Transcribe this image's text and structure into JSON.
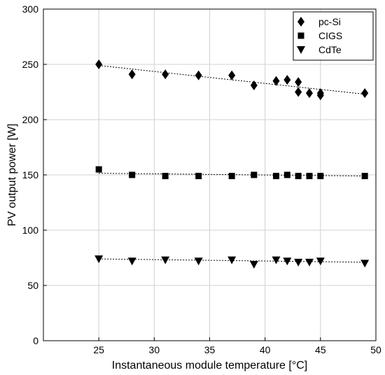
{
  "chart_data": {
    "type": "scatter",
    "xlabel": "Instantaneous module temperature [°C]",
    "ylabel": "PV output power [W]",
    "xlim": [
      20,
      50
    ],
    "ylim": [
      0,
      300
    ],
    "xticks": [
      25,
      30,
      35,
      40,
      45,
      50
    ],
    "yticks": [
      0,
      50,
      100,
      150,
      200,
      250,
      300
    ],
    "grid": true,
    "legend_position": "top-right",
    "series": [
      {
        "name": "pc-Si",
        "marker": "diamond",
        "color": "#000000",
        "points": [
          [
            25,
            250
          ],
          [
            28,
            241
          ],
          [
            31,
            241
          ],
          [
            34,
            240
          ],
          [
            37,
            240
          ],
          [
            39,
            231
          ],
          [
            41,
            235
          ],
          [
            42,
            236
          ],
          [
            43,
            234
          ],
          [
            43,
            225
          ],
          [
            44,
            224
          ],
          [
            45,
            224
          ],
          [
            45,
            222
          ],
          [
            49,
            224
          ]
        ],
        "trend": [
          [
            25,
            249
          ],
          [
            49,
            223
          ]
        ]
      },
      {
        "name": "CIGS",
        "marker": "square",
        "color": "#000000",
        "points": [
          [
            25,
            155
          ],
          [
            28,
            150
          ],
          [
            31,
            149
          ],
          [
            34,
            149
          ],
          [
            37,
            149
          ],
          [
            39,
            150
          ],
          [
            41,
            149
          ],
          [
            42,
            150
          ],
          [
            43,
            149
          ],
          [
            44,
            149
          ],
          [
            45,
            149
          ],
          [
            49,
            149
          ]
        ],
        "trend": [
          [
            25,
            151.5
          ],
          [
            49,
            149
          ]
        ]
      },
      {
        "name": "CdTe",
        "marker": "triangle-down",
        "color": "#000000",
        "points": [
          [
            25,
            74
          ],
          [
            28,
            72
          ],
          [
            31,
            73
          ],
          [
            34,
            72
          ],
          [
            37,
            73
          ],
          [
            39,
            69
          ],
          [
            41,
            73
          ],
          [
            42,
            72
          ],
          [
            43,
            71
          ],
          [
            44,
            71
          ],
          [
            45,
            72
          ],
          [
            49,
            70
          ]
        ],
        "trend": [
          [
            25,
            74
          ],
          [
            49,
            71
          ]
        ]
      }
    ]
  }
}
